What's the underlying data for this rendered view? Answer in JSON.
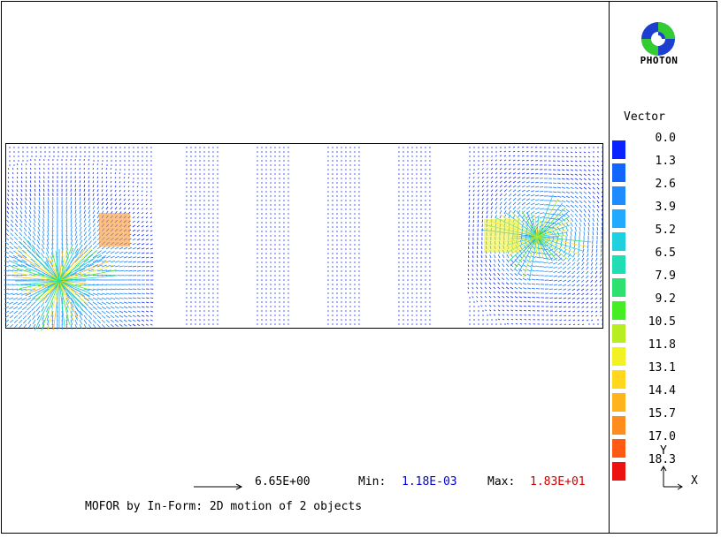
{
  "logo": {
    "name": "PHOTON",
    "icon": "photon-logo-icon"
  },
  "legend": {
    "title": "Vector",
    "entries": [
      {
        "value": "0.0",
        "color": "#0a22ff"
      },
      {
        "value": "1.3",
        "color": "#1166ff"
      },
      {
        "value": "2.6",
        "color": "#1e8cff"
      },
      {
        "value": "3.9",
        "color": "#22aaff"
      },
      {
        "value": "5.2",
        "color": "#1ed0e0"
      },
      {
        "value": "6.5",
        "color": "#22ddb4"
      },
      {
        "value": "7.9",
        "color": "#2ee06e"
      },
      {
        "value": "9.2",
        "color": "#44ee22"
      },
      {
        "value": "10.5",
        "color": "#b6ee22"
      },
      {
        "value": "11.8",
        "color": "#f2f222"
      },
      {
        "value": "13.1",
        "color": "#ffd81e"
      },
      {
        "value": "14.4",
        "color": "#ffb41e"
      },
      {
        "value": "15.7",
        "color": "#ff8c1e"
      },
      {
        "value": "17.0",
        "color": "#ff5a14"
      },
      {
        "value": "18.3",
        "color": "#ee1111"
      }
    ]
  },
  "reference": {
    "value": "6.65E+00"
  },
  "stats": {
    "min_label": "Min:",
    "min_value": "1.18E-03",
    "min_color": "#0000cc",
    "max_label": "Max:",
    "max_value": "1.83E+01",
    "max_color": "#cc0000"
  },
  "caption": "MOFOR by In-Form: 2D motion of 2 objects",
  "axis": {
    "y_label": "Y",
    "x_label": "X"
  }
}
